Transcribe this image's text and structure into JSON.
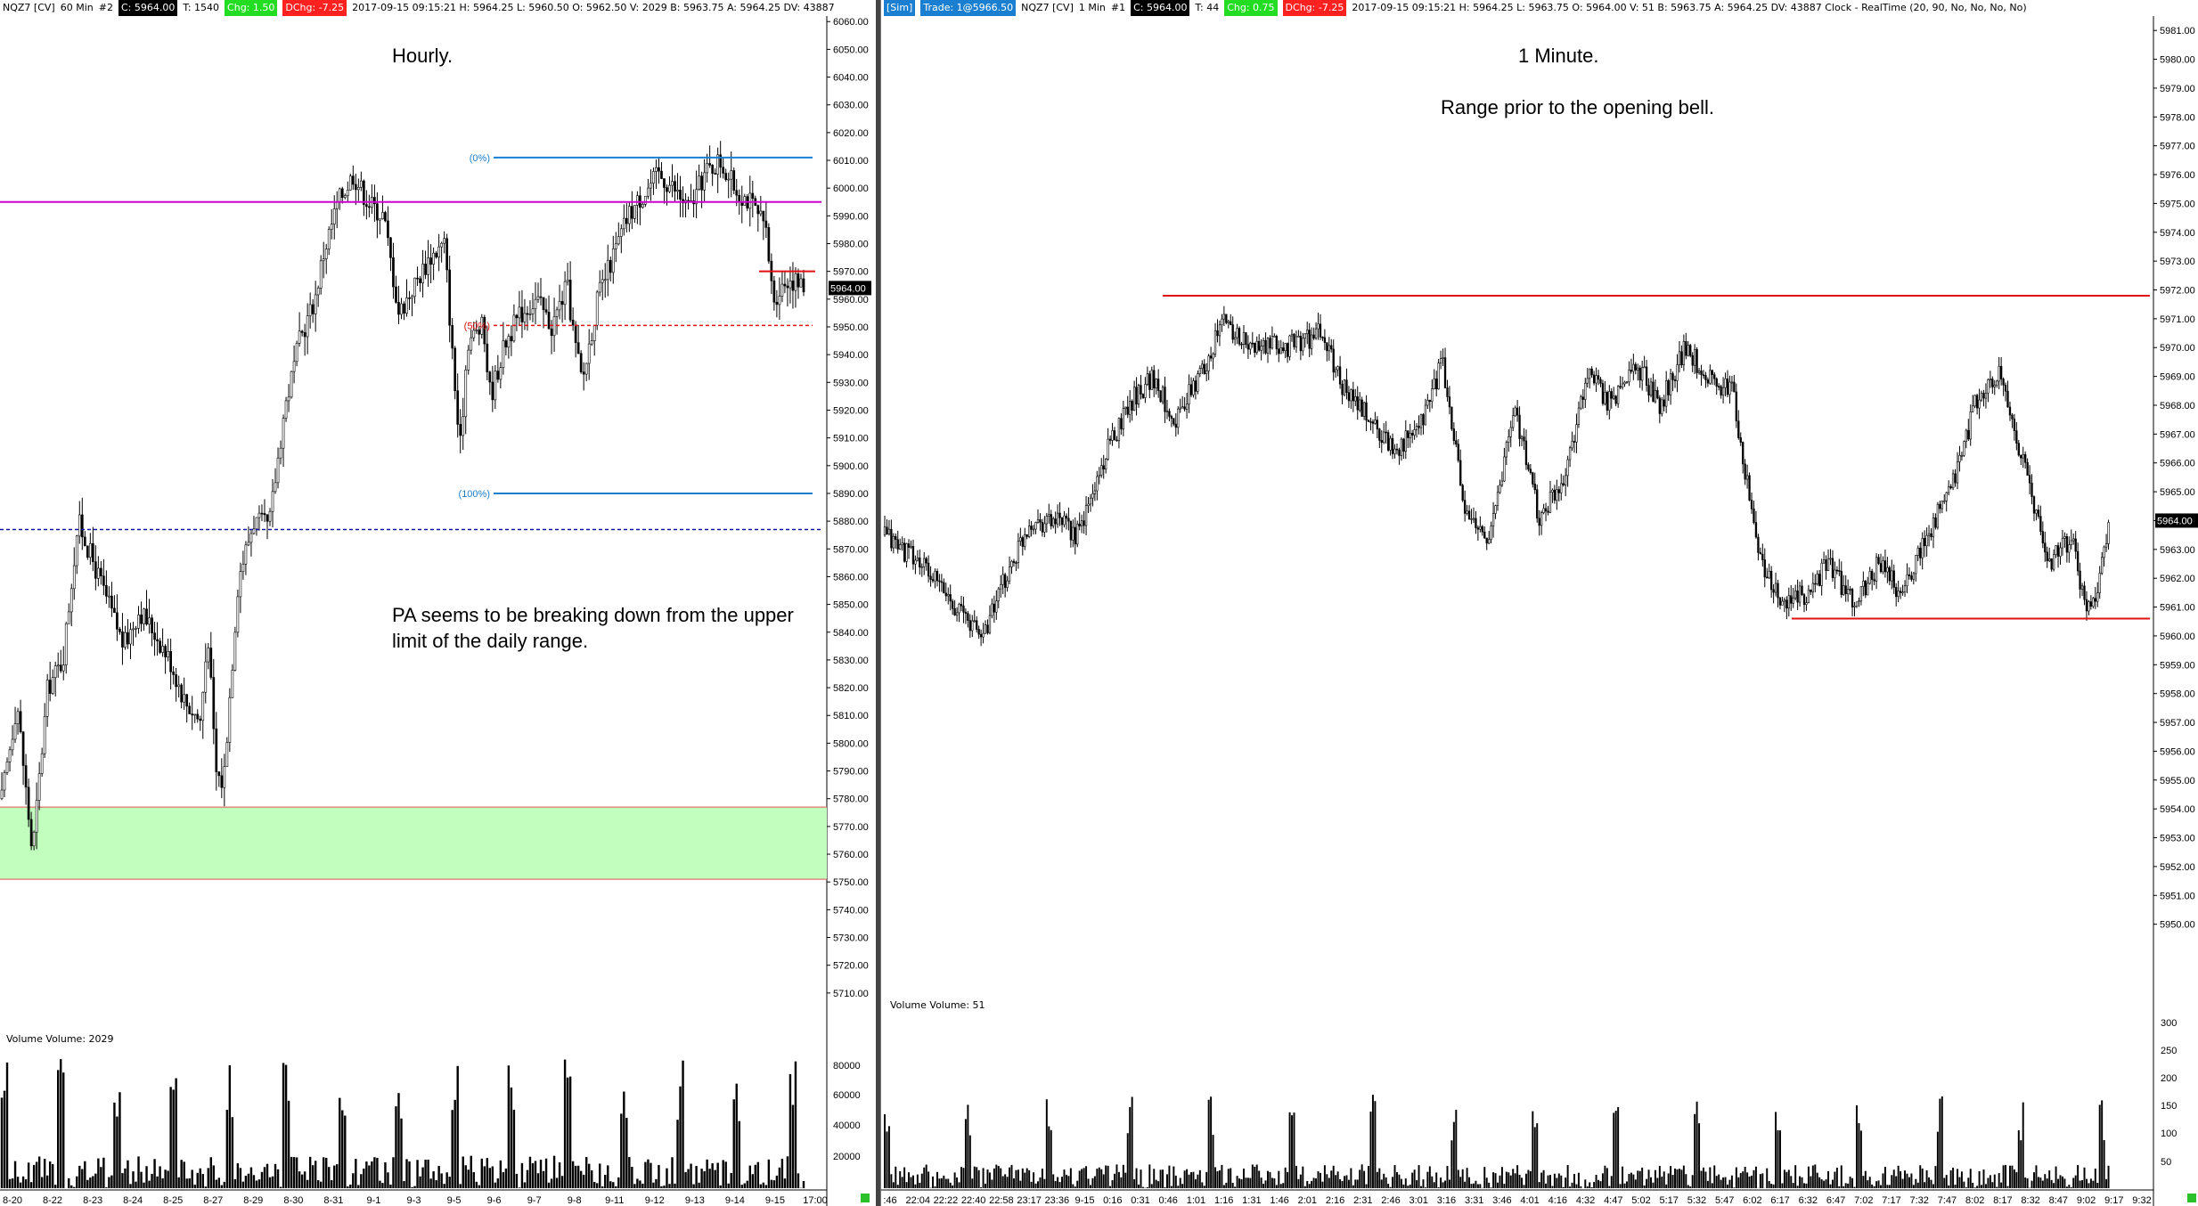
{
  "left": {
    "header": {
      "symbol": "NQZ7 [CV]",
      "interval": "60 Min",
      "chart_num": "#2",
      "close": "C: 5964.00",
      "ticks": "T: 1540",
      "chg": "Chg: 1.50",
      "dchg": "DChg: -7.25",
      "stats": "2017-09-15 09:15:21 H: 5964.25 L: 5960.50 O: 5962.50 V: 2029 B: 5963.75 A: 5964.25 DV: 43887"
    },
    "title": "Hourly.",
    "annotation": "PA seems to be breaking down from the upper limit of the daily range.",
    "volume_label": "Volume  Volume: 2029",
    "price_label": "5964.00",
    "fib_labels": [
      "(0%)",
      "(50%)",
      "(100%)"
    ],
    "colors": {
      "fib_line": "#1a7fd0",
      "fib_mid": "#e01010",
      "magenta_line": "#cc00cc",
      "dashed_blue": "#1010a0",
      "zone": "#bfffbf",
      "red_line": "#e01010"
    }
  },
  "right": {
    "header": {
      "sim": "[Sim]",
      "trade": "Trade: 1@5966.50",
      "symbol": "NQZ7 [CV]",
      "interval": "1 Min",
      "chart_num": "#1",
      "close": "C: 5964.00",
      "ticks": "T: 44",
      "chg": "Chg: 0.75",
      "dchg": "DChg: -7.25",
      "stats": "2017-09-15 09:15:21 H: 5964.25 L: 5963.75 O: 5964.00 V: 51 B: 5963.75 A: 5964.25 DV: 43887 Clock - RealTime  (20, 90, No, No, No, No)"
    },
    "title": "1 Minute.",
    "subtitle": "Range prior to the opening bell.",
    "volume_label": "Volume  Volume: 51",
    "price_label": "5964.00"
  },
  "chart_data": [
    {
      "type": "candlestick",
      "title": "Hourly.",
      "ylim": [
        5700,
        6062
      ],
      "y_ticks": [
        "6060.00",
        "6050.00",
        "6040.00",
        "6030.00",
        "6020.00",
        "6010.00",
        "6000.00",
        "5990.00",
        "5980.00",
        "5970.00",
        "5960.00",
        "5950.00",
        "5940.00",
        "5930.00",
        "5920.00",
        "5910.00",
        "5900.00",
        "5890.00",
        "5880.00",
        "5870.00",
        "5860.00",
        "5850.00",
        "5840.00",
        "5830.00",
        "5820.00",
        "5810.00",
        "5800.00",
        "5790.00",
        "5780.00",
        "5770.00",
        "5760.00",
        "5750.00",
        "5740.00",
        "5730.00",
        "5720.00",
        "5710.00"
      ],
      "x_ticks": [
        "8-20",
        "8-22",
        "8-23",
        "8-24",
        "8-25",
        "8-27",
        "8-29",
        "8-30",
        "8-31",
        "9-1",
        "9-3",
        "9-5",
        "9-6",
        "9-7",
        "9-8",
        "9-11",
        "9-12",
        "9-13",
        "9-14",
        "9-15",
        "17:00"
      ],
      "price_path": [
        [
          0,
          5780
        ],
        [
          2,
          5815
        ],
        [
          4,
          5760
        ],
        [
          6,
          5820
        ],
        [
          8,
          5830
        ],
        [
          10,
          5880
        ],
        [
          12,
          5865
        ],
        [
          14,
          5850
        ],
        [
          16,
          5835
        ],
        [
          18,
          5848
        ],
        [
          20,
          5840
        ],
        [
          22,
          5830
        ],
        [
          24,
          5815
        ],
        [
          26,
          5808
        ],
        [
          27,
          5840
        ],
        [
          28,
          5790
        ],
        [
          29,
          5785
        ],
        [
          31,
          5860
        ],
        [
          33,
          5880
        ],
        [
          35,
          5878
        ],
        [
          37,
          5920
        ],
        [
          39,
          5945
        ],
        [
          41,
          5960
        ],
        [
          42,
          5975
        ],
        [
          44,
          5995
        ],
        [
          46,
          6005
        ],
        [
          48,
          5995
        ],
        [
          50,
          5990
        ],
        [
          52,
          5955
        ],
        [
          54,
          5965
        ],
        [
          56,
          5975
        ],
        [
          58,
          5980
        ],
        [
          59,
          5940
        ],
        [
          60,
          5905
        ],
        [
          61,
          5945
        ],
        [
          63,
          5950
        ],
        [
          64,
          5925
        ],
        [
          66,
          5945
        ],
        [
          68,
          5955
        ],
        [
          70,
          5960
        ],
        [
          72,
          5950
        ],
        [
          74,
          5965
        ],
        [
          75,
          5945
        ],
        [
          76,
          5930
        ],
        [
          78,
          5960
        ],
        [
          80,
          5975
        ],
        [
          82,
          5990
        ],
        [
          84,
          5998
        ],
        [
          86,
          6005
        ],
        [
          88,
          6000
        ],
        [
          90,
          5992
        ],
        [
          92,
          6005
        ],
        [
          94,
          6010
        ],
        [
          96,
          6000
        ],
        [
          98,
          5995
        ],
        [
          100,
          5985
        ],
        [
          101,
          5960
        ],
        [
          103,
          5968
        ],
        [
          105,
          5964
        ]
      ],
      "levels": [
        {
          "label": "(0%)",
          "value": 6011,
          "style": "fib"
        },
        {
          "label": "(50%)",
          "value": 5950.5,
          "style": "fib-mid"
        },
        {
          "label": "(100%)",
          "value": 5890,
          "style": "fib"
        },
        {
          "value": 5995,
          "style": "magenta"
        },
        {
          "value": 5877,
          "style": "dashed-blue"
        },
        {
          "value": 5970,
          "style": "red-short"
        }
      ],
      "zone": [
        5751,
        5777
      ],
      "last": 5964.0
    },
    {
      "type": "candlestick",
      "title": "1 Minute.",
      "ylim": [
        5949,
        5981.5
      ],
      "y_ticks": [
        "5981.00",
        "5980.00",
        "5979.00",
        "5978.00",
        "5977.00",
        "5976.00",
        "5975.00",
        "5974.00",
        "5973.00",
        "5972.00",
        "5971.00",
        "5970.00",
        "5969.00",
        "5968.00",
        "5967.00",
        "5966.00",
        "5965.00",
        "5964.00",
        "5963.00",
        "5962.00",
        "5961.00",
        "5960.00",
        "5959.00",
        "5958.00",
        "5957.00",
        "5956.00",
        "5955.00",
        "5954.00",
        "5953.00",
        "5952.00",
        "5951.00",
        "5950.00"
      ],
      "x_ticks": [
        ":46",
        "22:04",
        "22:22",
        "22:40",
        "22:58",
        "23:17",
        "23:36",
        "9-15",
        "0:16",
        "0:31",
        "0:46",
        "1:01",
        "1:16",
        "1:31",
        "1:46",
        "2:01",
        "2:16",
        "2:31",
        "2:46",
        "3:01",
        "3:16",
        "3:31",
        "3:46",
        "4:01",
        "4:16",
        "4:32",
        "4:47",
        "5:02",
        "5:17",
        "5:32",
        "5:47",
        "6:02",
        "6:17",
        "6:32",
        "6:47",
        "7:02",
        "7:17",
        "7:32",
        "7:47",
        "8:02",
        "8:17",
        "8:32",
        "8:47",
        "9:02",
        "9:17",
        "9:32"
      ],
      "price_path": [
        [
          0,
          5963.5
        ],
        [
          3,
          5962.5
        ],
        [
          6,
          5961
        ],
        [
          8,
          5960
        ],
        [
          10,
          5962
        ],
        [
          12,
          5964
        ],
        [
          14,
          5964
        ],
        [
          16,
          5963.5
        ],
        [
          18,
          5966
        ],
        [
          20,
          5968
        ],
        [
          22,
          5969
        ],
        [
          24,
          5967.5
        ],
        [
          26,
          5969
        ],
        [
          28,
          5971
        ],
        [
          30,
          5970
        ],
        [
          33,
          5970
        ],
        [
          36,
          5970.5
        ],
        [
          38,
          5968.5
        ],
        [
          40,
          5967.5
        ],
        [
          42,
          5966.5
        ],
        [
          44,
          5967
        ],
        [
          46,
          5969.5
        ],
        [
          48,
          5964
        ],
        [
          50,
          5963.5
        ],
        [
          52,
          5968
        ],
        [
          54,
          5964
        ],
        [
          56,
          5965.5
        ],
        [
          58,
          5969
        ],
        [
          60,
          5968
        ],
        [
          62,
          5969.5
        ],
        [
          64,
          5968
        ],
        [
          66,
          5970
        ],
        [
          68,
          5969
        ],
        [
          70,
          5968.5
        ],
        [
          72,
          5963
        ],
        [
          74,
          5961
        ],
        [
          76,
          5961.5
        ],
        [
          78,
          5962.5
        ],
        [
          80,
          5961
        ],
        [
          82,
          5962.5
        ],
        [
          84,
          5961.5
        ],
        [
          86,
          5963.5
        ],
        [
          88,
          5965
        ],
        [
          90,
          5968
        ],
        [
          92,
          5969
        ],
        [
          94,
          5966
        ],
        [
          96,
          5962.5
        ],
        [
          98,
          5963.5
        ],
        [
          99,
          5961
        ],
        [
          100,
          5961.5
        ],
        [
          101,
          5964
        ]
      ],
      "levels": [
        {
          "value": 5971.8,
          "style": "red"
        },
        {
          "value": 5960.6,
          "style": "red"
        }
      ],
      "last": 5964.0
    }
  ]
}
